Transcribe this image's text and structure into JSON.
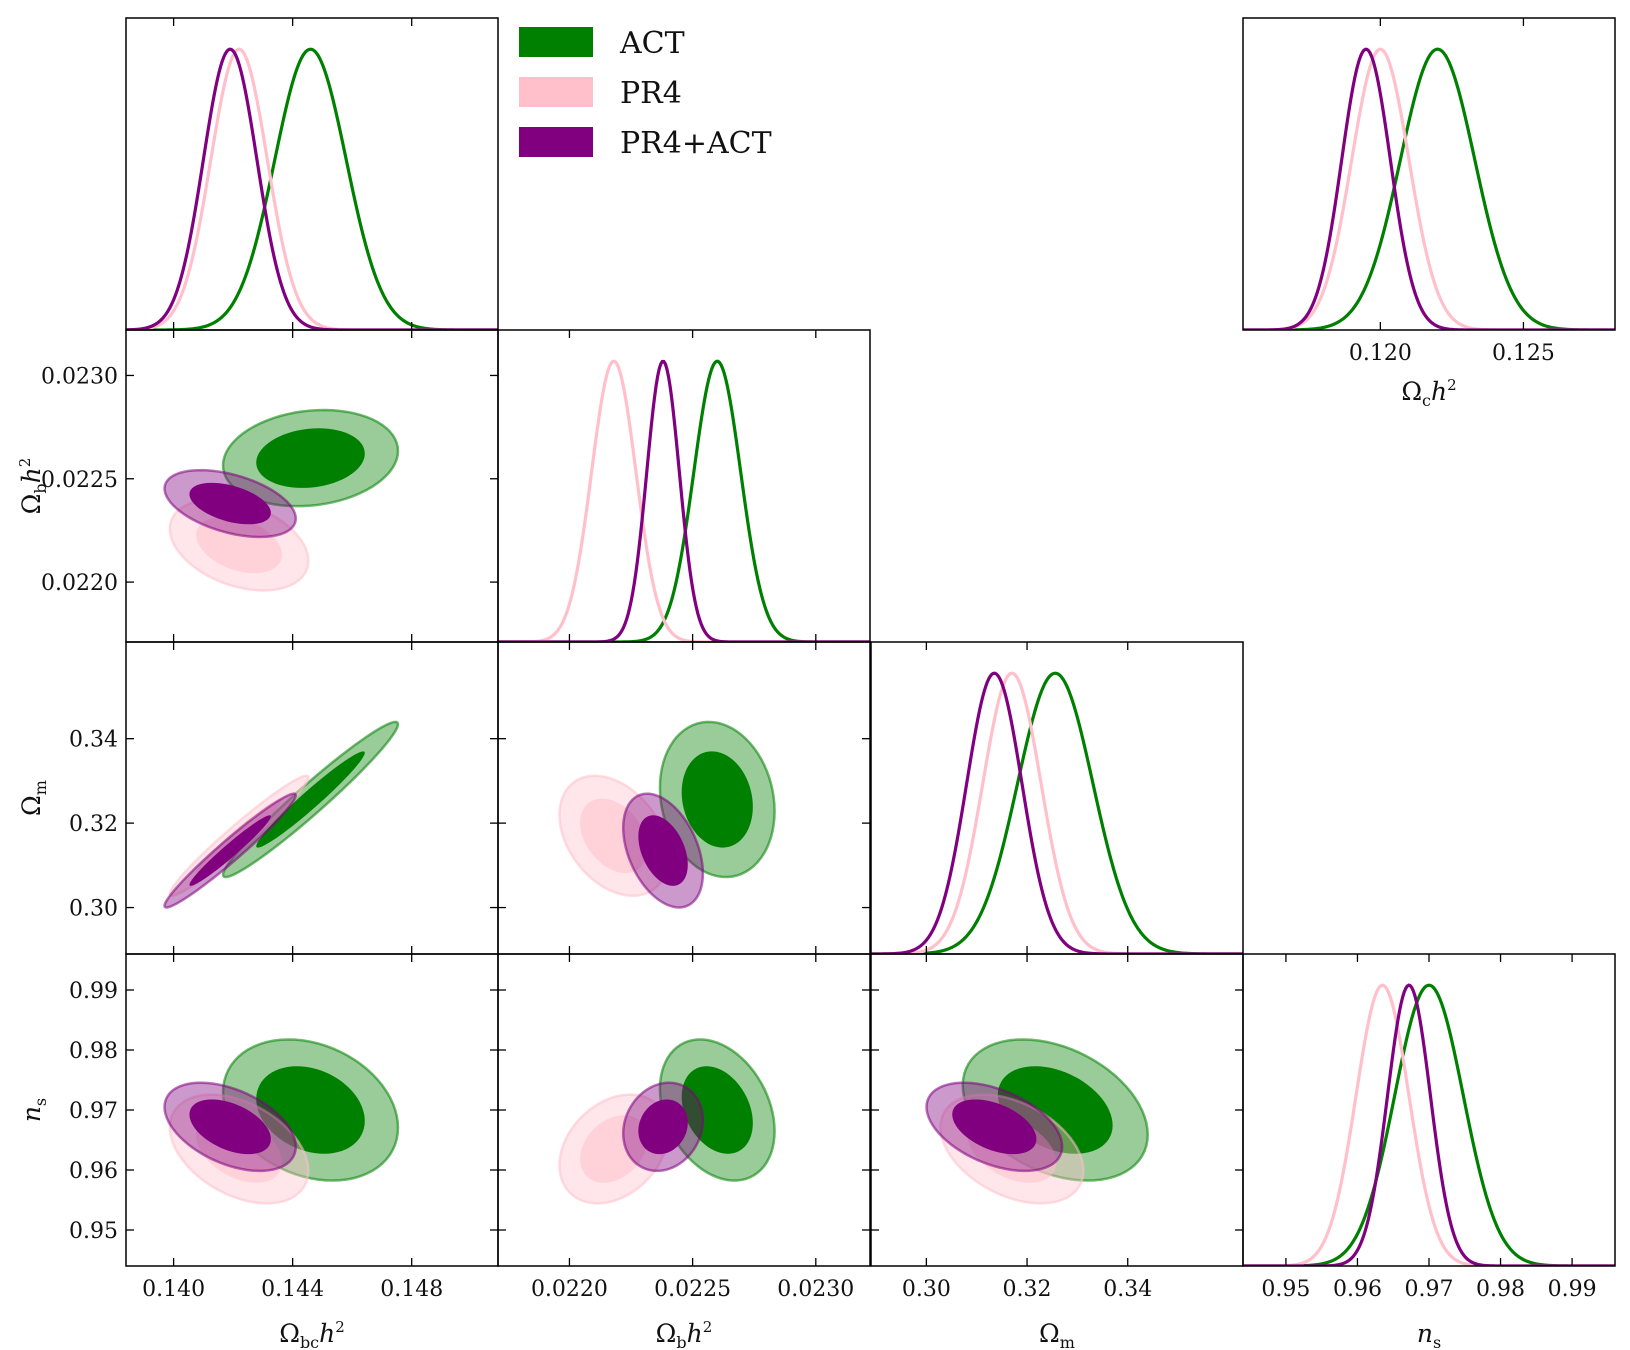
{
  "colors": {
    "ACT": "#008000",
    "PR4": "#ffc0cb",
    "PR4+ACT": "#800080"
  },
  "legend": [
    {
      "name": "ACT",
      "color": "#008000"
    },
    {
      "name": "PR4",
      "color": "#ffc0cb"
    },
    {
      "name": "PR4+ACT",
      "color": "#800080"
    }
  ],
  "chart_data": {
    "type": "triangle-contour",
    "params": [
      {
        "key": "obc",
        "label": "Ωbch²",
        "range": [
          0.1384,
          0.1509
        ],
        "ticks": [
          {
            "v": 0.14,
            "label": "0.140"
          },
          {
            "v": 0.144,
            "label": "0.144"
          },
          {
            "v": 0.148,
            "label": "0.148"
          }
        ]
      },
      {
        "key": "ob",
        "label": "Ωbh²",
        "range": [
          0.02171,
          0.02322
        ],
        "ticks": [
          {
            "v": 0.022,
            "label": "0.0220"
          },
          {
            "v": 0.0225,
            "label": "0.0225"
          },
          {
            "v": 0.023,
            "label": "0.0230"
          }
        ]
      },
      {
        "key": "om",
        "label": "Ωm",
        "range": [
          0.289,
          0.3629
        ],
        "ticks": [
          {
            "v": 0.3,
            "label": "0.30"
          },
          {
            "v": 0.32,
            "label": "0.32"
          },
          {
            "v": 0.34,
            "label": "0.34"
          }
        ]
      },
      {
        "key": "ns",
        "label": "ns",
        "range": [
          0.944,
          0.996
        ],
        "ticks": [
          {
            "v": 0.95,
            "label": "0.95"
          },
          {
            "v": 0.96,
            "label": "0.96"
          },
          {
            "v": 0.97,
            "label": "0.97"
          },
          {
            "v": 0.98,
            "label": "0.98"
          },
          {
            "v": 0.99,
            "label": "0.99"
          }
        ]
      }
    ],
    "inset": {
      "key": "oc",
      "label": "Ωch²",
      "range": [
        0.1152,
        0.1282
      ],
      "ticks": [
        {
          "v": 0.12,
          "label": "0.120"
        },
        {
          "v": 0.125,
          "label": "0.125"
        }
      ]
    },
    "series": [
      {
        "name": "ACT",
        "mean": {
          "obc": 0.1446,
          "ob": 0.0226,
          "om": 0.3256,
          "ns": 0.97,
          "oc": 0.122
        },
        "sigma": {
          "obc": 0.0012,
          "ob": 9.5e-05,
          "om": 0.0075,
          "ns": 0.0048,
          "oc": 0.0013
        },
        "corr": {
          "obc|ob": 0.15,
          "obc|om": 0.97,
          "ob|om": -0.15,
          "obc|ns": -0.25,
          "ob|ns": -0.3,
          "om|ns": -0.35
        }
      },
      {
        "name": "PR4",
        "mean": {
          "obc": 0.1422,
          "ob": 0.02218,
          "om": 0.317,
          "ns": 0.9635,
          "oc": 0.12
        },
        "sigma": {
          "obc": 0.00095,
          "ob": 9e-05,
          "om": 0.0058,
          "ns": 0.0037,
          "oc": 0.001
        },
        "corr": {
          "obc|ob": -0.35,
          "obc|om": 0.97,
          "ob|om": -0.35,
          "obc|ns": -0.4,
          "ob|ns": 0.3,
          "om|ns": -0.4
        }
      },
      {
        "name": "PR4+ACT",
        "mean": {
          "obc": 0.1419,
          "ob": 0.02238,
          "om": 0.3135,
          "ns": 0.9672,
          "oc": 0.1195
        },
        "sigma": {
          "obc": 0.0009,
          "ob": 6.6e-05,
          "om": 0.0055,
          "ns": 0.003,
          "oc": 0.00085
        },
        "corr": {
          "obc|ob": -0.45,
          "obc|om": 0.97,
          "ob|om": -0.4,
          "obc|ns": -0.45,
          "ob|ns": 0.15,
          "om|ns": -0.45
        }
      }
    ]
  }
}
